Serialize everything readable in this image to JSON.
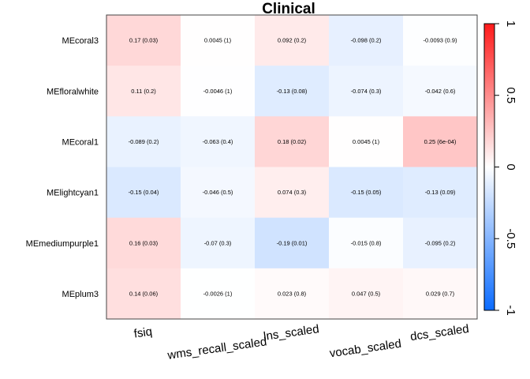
{
  "chart_data": {
    "type": "heatmap",
    "title": "Clinical",
    "rows": [
      "MEcoral3",
      "MEfloralwhite",
      "MEcoral1",
      "MElightcyan1",
      "MEmediumpurple1",
      "MEplum3"
    ],
    "columns": [
      "fsiq",
      "wms_recall_scaled",
      "lns_scaled",
      "vocab_scaled",
      "dcs_scaled"
    ],
    "values": [
      [
        0.17,
        0.0045,
        0.092,
        -0.098,
        -0.0093
      ],
      [
        0.11,
        -0.0046,
        -0.13,
        -0.074,
        -0.042
      ],
      [
        -0.089,
        -0.063,
        0.18,
        0.0045,
        0.25
      ],
      [
        -0.15,
        -0.046,
        0.074,
        -0.15,
        -0.13
      ],
      [
        0.16,
        -0.07,
        -0.19,
        -0.015,
        -0.095
      ],
      [
        0.14,
        -0.0026,
        0.023,
        0.047,
        0.029
      ]
    ],
    "labels": [
      [
        "0.17 (0.03)",
        "0.0045 (1)",
        "0.092 (0.2)",
        "-0.098 (0.2)",
        "-0.0093 (0.9)"
      ],
      [
        "0.11 (0.2)",
        "-0.0046 (1)",
        "-0.13 (0.08)",
        "-0.074 (0.3)",
        "-0.042 (0.6)"
      ],
      [
        "-0.089 (0.2)",
        "-0.063 (0.4)",
        "0.18 (0.02)",
        "0.0045 (1)",
        "0.25 (6e-04)"
      ],
      [
        "-0.15 (0.04)",
        "-0.046 (0.5)",
        "0.074 (0.3)",
        "-0.15 (0.05)",
        "-0.13 (0.09)"
      ],
      [
        "0.16 (0.03)",
        "-0.07 (0.3)",
        "-0.19 (0.01)",
        "-0.015 (0.8)",
        "-0.095 (0.2)"
      ],
      [
        "0.14 (0.06)",
        "-0.0026 (1)",
        "0.023 (0.8)",
        "0.047 (0.5)",
        "0.029 (0.7)"
      ]
    ],
    "color_range": [
      -1,
      1
    ],
    "color_ticks": [
      "-1",
      "-0.5",
      "0",
      "0.5",
      "1"
    ],
    "colors": {
      "negative": "#0a6bff",
      "zero": "#ffffff",
      "positive": "#ff1a1a"
    }
  }
}
